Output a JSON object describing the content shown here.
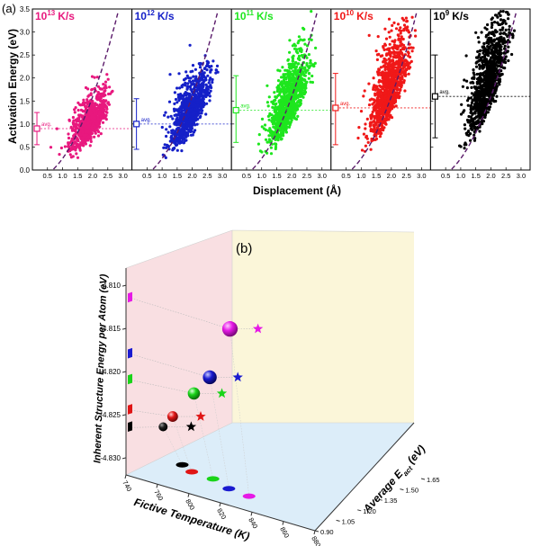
{
  "chart_data": [
    {
      "panel": "(a)",
      "type": "scatter",
      "ylabel": "Activation Energy (eV)",
      "xlabel": "Displacement (Å)",
      "xlim": [
        0,
        3.3
      ],
      "ylim": [
        0,
        3.5
      ],
      "xticks": [
        "0.5",
        "1.0",
        "1.5",
        "2.0",
        "2.5",
        "3.0"
      ],
      "yticks": [
        "0.0",
        "0.5",
        "1.0",
        "1.5",
        "2.0",
        "2.5",
        "3.0",
        "3.5"
      ],
      "avg_label": "avg.",
      "series": [
        {
          "name": "1013 K/s",
          "rate_base": "10",
          "rate_exp": "13",
          "rate_unit": "K/s",
          "color": "#e8187e",
          "avg": 0.9,
          "spread": [
            0.55,
            1.25
          ],
          "point_count": 700
        },
        {
          "name": "1012 K/s",
          "rate_base": "10",
          "rate_exp": "12",
          "rate_unit": "K/s",
          "color": "#1520c8",
          "avg": 1.0,
          "spread": [
            0.45,
            1.55
          ],
          "point_count": 900
        },
        {
          "name": "1011 K/s",
          "rate_base": "10",
          "rate_exp": "11",
          "rate_unit": "K/s",
          "color": "#1ee61e",
          "avg": 1.3,
          "spread": [
            0.6,
            2.05
          ],
          "point_count": 1000
        },
        {
          "name": "1010 K/s",
          "rate_base": "10",
          "rate_exp": "10",
          "rate_unit": "K/s",
          "color": "#f01818",
          "avg": 1.35,
          "spread": [
            0.55,
            2.1
          ],
          "point_count": 1000
        },
        {
          "name": "109 K/s",
          "rate_base": "10",
          "rate_exp": "9",
          "rate_unit": "K/s",
          "color": "#000000",
          "avg": 1.6,
          "spread": [
            0.7,
            2.5
          ],
          "point_count": 1000
        }
      ]
    },
    {
      "panel": "(b)",
      "type": "scatter3d",
      "xlabel": "Fictive Temperature (K)",
      "ylabel_base": "Average E",
      "ylabel_sub": "act",
      "ylabel_unit": "(eV)",
      "zlabel": "Inherent Structure Energy per Atom (eV)",
      "xticks": [
        "740",
        "760",
        "800",
        "820",
        "840",
        "860",
        "880"
      ],
      "yticks": [
        "0.90",
        "1.05",
        "1.20",
        "1.35",
        "1.50",
        "1.65"
      ],
      "zticks": [
        "-4.810",
        "-4.815",
        "-4.820",
        "-4.825",
        "-4.830"
      ],
      "points": [
        {
          "rate": "1013 K/s",
          "color": "#e619e6",
          "fictive_T": 880,
          "avg_Eact": 0.9,
          "energy": -4.8115
        },
        {
          "rate": "1012 K/s",
          "color": "#1a1ad0",
          "fictive_T": 850,
          "avg_Eact": 1.0,
          "energy": -4.818
        },
        {
          "rate": "1011 K/s",
          "color": "#19d419",
          "fictive_T": 820,
          "avg_Eact": 1.3,
          "energy": -4.821
        },
        {
          "rate": "1010 K/s",
          "color": "#e01515",
          "fictive_T": 790,
          "avg_Eact": 1.35,
          "energy": -4.8245
        },
        {
          "rate": "109 K/s",
          "color": "#000000",
          "fictive_T": 770,
          "avg_Eact": 1.6,
          "energy": -4.8265
        }
      ]
    }
  ]
}
